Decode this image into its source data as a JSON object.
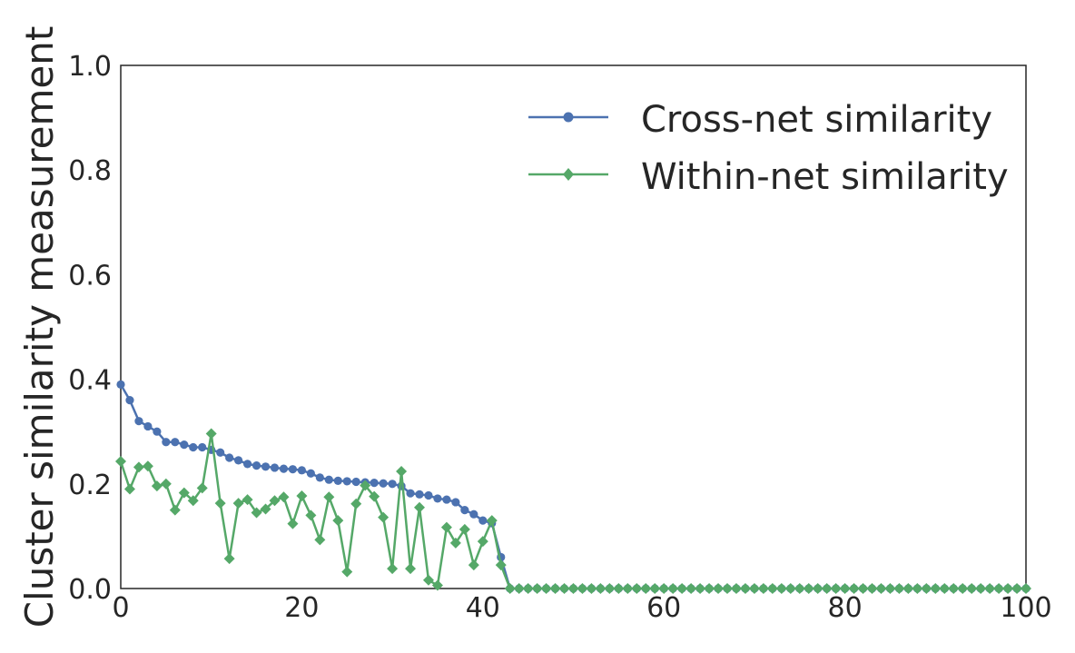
{
  "chart_data": {
    "type": "line",
    "title": "",
    "xlabel": "",
    "ylabel": "Cluster similarity measurement",
    "xlim": [
      0,
      100
    ],
    "ylim": [
      0.0,
      1.0
    ],
    "xticks": [
      0,
      20,
      40,
      60,
      80,
      100
    ],
    "yticks": [
      0.0,
      0.2,
      0.4,
      0.6,
      0.8,
      1.0
    ],
    "xtick_labels": [
      "0",
      "20",
      "40",
      "60",
      "80",
      "100"
    ],
    "ytick_labels": [
      "0.0",
      "0.2",
      "0.4",
      "0.6",
      "0.8",
      "1.0"
    ],
    "grid": false,
    "legend_position": "top-right",
    "series": [
      {
        "name": "Cross-net similarity",
        "color": "#4c72b0",
        "marker": "circle",
        "values": [
          0.39,
          0.36,
          0.32,
          0.31,
          0.3,
          0.28,
          0.28,
          0.275,
          0.27,
          0.27,
          0.265,
          0.26,
          0.25,
          0.245,
          0.238,
          0.235,
          0.233,
          0.231,
          0.229,
          0.228,
          0.226,
          0.22,
          0.212,
          0.208,
          0.206,
          0.205,
          0.204,
          0.203,
          0.202,
          0.201,
          0.2,
          0.196,
          0.182,
          0.18,
          0.178,
          0.172,
          0.17,
          0.165,
          0.15,
          0.142,
          0.13,
          0.125,
          0.06,
          0.0,
          0.0,
          0.0,
          0.0,
          0.0,
          0.0,
          0.0,
          0.0,
          0.0,
          0.0,
          0.0,
          0.0,
          0.0,
          0.0,
          0.0,
          0.0,
          0.0,
          0.0,
          0.0,
          0.0,
          0.0,
          0.0,
          0.0,
          0.0,
          0.0,
          0.0,
          0.0,
          0.0,
          0.0,
          0.0,
          0.0,
          0.0,
          0.0,
          0.0,
          0.0,
          0.0,
          0.0,
          0.0,
          0.0,
          0.0,
          0.0,
          0.0,
          0.0,
          0.0,
          0.0,
          0.0,
          0.0,
          0.0,
          0.0,
          0.0,
          0.0,
          0.0,
          0.0,
          0.0,
          0.0,
          0.0,
          0.0,
          0.0
        ]
      },
      {
        "name": "Within-net similarity",
        "color": "#55a868",
        "marker": "diamond",
        "values": [
          0.243,
          0.19,
          0.232,
          0.234,
          0.196,
          0.2,
          0.15,
          0.183,
          0.168,
          0.192,
          0.296,
          0.163,
          0.057,
          0.163,
          0.17,
          0.145,
          0.152,
          0.168,
          0.175,
          0.124,
          0.177,
          0.14,
          0.093,
          0.175,
          0.13,
          0.032,
          0.162,
          0.197,
          0.176,
          0.136,
          0.038,
          0.224,
          0.038,
          0.155,
          0.016,
          0.006,
          0.117,
          0.087,
          0.113,
          0.045,
          0.09,
          0.13,
          0.045,
          0.0,
          0.0,
          0.0,
          0.0,
          0.0,
          0.0,
          0.0,
          0.0,
          0.0,
          0.0,
          0.0,
          0.0,
          0.0,
          0.0,
          0.0,
          0.0,
          0.0,
          0.0,
          0.0,
          0.0,
          0.0,
          0.0,
          0.0,
          0.0,
          0.0,
          0.0,
          0.0,
          0.0,
          0.0,
          0.0,
          0.0,
          0.0,
          0.0,
          0.0,
          0.0,
          0.0,
          0.0,
          0.0,
          0.0,
          0.0,
          0.0,
          0.0,
          0.0,
          0.0,
          0.0,
          0.0,
          0.0,
          0.0,
          0.0,
          0.0,
          0.0,
          0.0,
          0.0,
          0.0,
          0.0,
          0.0,
          0.0,
          0.0
        ]
      }
    ]
  }
}
